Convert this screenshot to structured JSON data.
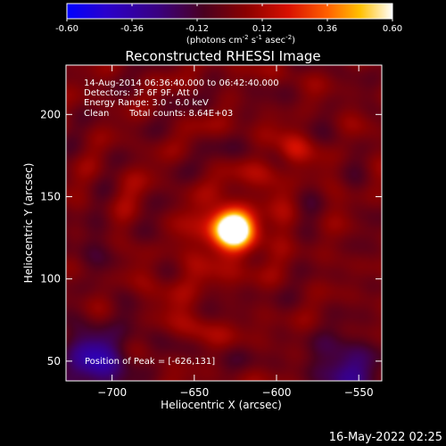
{
  "colorbar": {
    "ticks": [
      "-0.60",
      "-0.36",
      "-0.12",
      "0.12",
      "0.36",
      "0.60"
    ],
    "tick_values": [
      -0.6,
      -0.36,
      -0.12,
      0.12,
      0.36,
      0.6
    ],
    "range": [
      -0.6,
      0.6
    ],
    "units_prefix": "(photons cm",
    "units_exp1": "-2",
    "units_mid": " s",
    "units_exp2": "-1",
    "units_mid2": " asec",
    "units_exp3": "-2",
    "units_suffix": ")"
  },
  "title": "Reconstructed RHESSI Image",
  "annotation": {
    "time": "14-Aug-2014 06:36:40.000 to 06:42:40.000",
    "detectors": "Detectors: 3F 6F 9F, Att 0",
    "energy": "Energy Range: 3.0 - 6.0 keV",
    "clean_label": "Clean",
    "total_counts": "Total counts: 8.64E+03",
    "peak": "Position of Peak = [-626,131]"
  },
  "footer_date": "16-May-2022 02:25",
  "chart_data": {
    "type": "heatmap",
    "title": "Reconstructed RHESSI Image",
    "xlabel": "Heliocentric X (arcsec)",
    "ylabel": "Heliocentric Y (arcsec)",
    "xlim": [
      -728,
      -536
    ],
    "ylim": [
      38,
      230
    ],
    "xticks": [
      -700,
      -650,
      -600,
      -550
    ],
    "xtick_labels": [
      "−700",
      "−650",
      "−600",
      "−550"
    ],
    "yticks": [
      50,
      100,
      150,
      200
    ],
    "ytick_labels": [
      "50",
      "100",
      "150",
      "200"
    ],
    "colormap": [
      "#0000ff",
      "#2200aa",
      "#330044",
      "#660000",
      "#cc1100",
      "#ff5500",
      "#ffcc00",
      "#ffffff"
    ],
    "zlim": [
      -0.6,
      0.6
    ],
    "peak": {
      "x": -626,
      "y": 131,
      "value": 0.6
    },
    "features": [
      {
        "x": -626,
        "y": 131,
        "sigma": 8,
        "value": 0.58
      },
      {
        "x": -633,
        "y": 129,
        "sigma": 11,
        "value": 0.28
      },
      {
        "x": -618,
        "y": 128,
        "sigma": 14,
        "value": 0.12
      },
      {
        "x": -590,
        "y": 178,
        "sigma": 7,
        "value": 0.18
      },
      {
        "x": -605,
        "y": 165,
        "sigma": 8,
        "value": 0.1
      },
      {
        "x": -660,
        "y": 95,
        "sigma": 9,
        "value": 0.12
      },
      {
        "x": -648,
        "y": 72,
        "sigma": 8,
        "value": 0.09
      },
      {
        "x": -690,
        "y": 155,
        "sigma": 10,
        "value": 0.05
      }
    ],
    "negative_regions": [
      {
        "x": -710,
        "y": 50,
        "sigma": 14,
        "value": -0.34
      },
      {
        "x": -558,
        "y": 45,
        "sigma": 13,
        "value": -0.28
      },
      {
        "x": -720,
        "y": 120,
        "sigma": 10,
        "value": -0.1
      }
    ]
  }
}
